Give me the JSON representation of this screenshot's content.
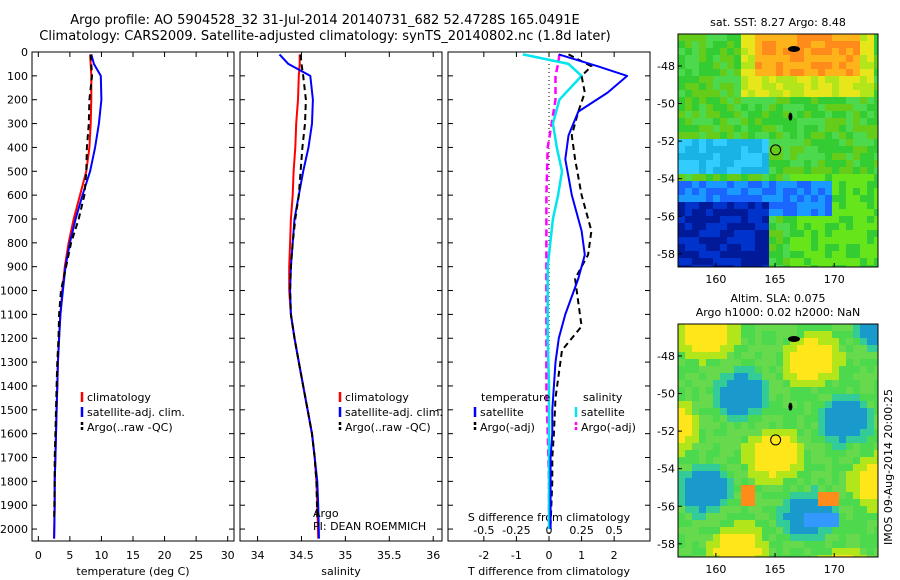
{
  "header": {
    "title_line1": "Argo profile: AO 5904528_32 31-Jul-2014 20140731_682 52.4728S 165.0491E",
    "title_line2": "Climatology: CARS2009. Satellite-adjusted climatology: synTS_20140802.nc (1.8d later)"
  },
  "colors": {
    "climatology": "#ff0000",
    "satellite": "#0000ff",
    "argo": "#000000",
    "satellite_salinity": "#00e5ee",
    "argo_salinity_adj": "#ff00ff"
  },
  "chart_data": [
    {
      "type": "line",
      "panel": "temperature",
      "xlabel": "temperature (deg C)",
      "xlim": [
        -1,
        31
      ],
      "xticks": [
        "0",
        "5",
        "10",
        "15",
        "20",
        "25",
        "30"
      ],
      "ylim": [
        0,
        2050
      ],
      "yticks": [
        "0",
        "100",
        "200",
        "300",
        "400",
        "500",
        "600",
        "700",
        "800",
        "900",
        "1000",
        "1100",
        "1200",
        "1300",
        "1400",
        "1500",
        "1600",
        "1700",
        "1800",
        "1900",
        "2000"
      ],
      "legend": [
        "climatology",
        "satellite-adj. clim.",
        "Argo(..raw -QC)"
      ],
      "series": [
        {
          "name": "climatology",
          "x": [
            8.2,
            8.3,
            8.4,
            8.4,
            8.3,
            8.1,
            7.6,
            6.6,
            5.6,
            4.8,
            4.2,
            3.8,
            3.5,
            3.3,
            3.1,
            3.0,
            2.9,
            2.8,
            2.7,
            2.6,
            2.6,
            2.5
          ],
          "y": [
            10,
            50,
            100,
            200,
            300,
            400,
            500,
            600,
            700,
            800,
            900,
            1000,
            1100,
            1200,
            1300,
            1400,
            1500,
            1600,
            1700,
            1800,
            1900,
            2040
          ]
        },
        {
          "name": "satellite-adj. clim.",
          "x": [
            8.4,
            8.8,
            9.9,
            10.0,
            9.6,
            9.0,
            8.2,
            7.0,
            5.9,
            5.0,
            4.3,
            3.9,
            3.5,
            3.3,
            3.1,
            3.0,
            2.9,
            2.8,
            2.7,
            2.6,
            2.6,
            2.5
          ],
          "y": [
            10,
            50,
            100,
            200,
            300,
            400,
            500,
            600,
            700,
            800,
            900,
            1000,
            1100,
            1200,
            1300,
            1400,
            1500,
            1600,
            1700,
            1800,
            1900,
            2040
          ]
        },
        {
          "name": "Argo(..raw -QC)",
          "x": [
            8.3,
            8.4,
            8.5,
            8.1,
            8.0,
            7.7,
            7.6,
            7.3,
            6.4,
            5.2,
            4.4,
            3.6,
            3.3,
            3.2,
            3.0,
            2.9,
            2.8,
            2.7,
            2.6,
            2.6,
            2.5
          ],
          "y": [
            10,
            50,
            100,
            200,
            300,
            400,
            500,
            600,
            700,
            800,
            900,
            1000,
            1100,
            1200,
            1300,
            1400,
            1500,
            1600,
            1700,
            1800,
            1960
          ]
        }
      ]
    },
    {
      "type": "line",
      "panel": "salinity",
      "xlabel": "salinity",
      "xlim": [
        33.8,
        36.1
      ],
      "xticks": [
        "34",
        "34.5",
        "35",
        "35.5",
        "36"
      ],
      "ylim": [
        0,
        2050
      ],
      "legend": [
        "climatology",
        "satellite-adj. clim.",
        "Argo(..raw -QC)"
      ],
      "annotation": [
        "Argo",
        "PI: DEAN ROEMMICH"
      ],
      "series": [
        {
          "name": "climatology",
          "x": [
            34.48,
            34.48,
            34.47,
            34.46,
            34.44,
            34.43,
            34.41,
            34.4,
            34.38,
            34.37,
            34.36,
            34.36,
            34.38,
            34.42,
            34.47,
            34.52,
            34.57,
            34.62,
            34.65,
            34.67,
            34.68,
            34.69
          ],
          "y": [
            10,
            50,
            100,
            200,
            300,
            400,
            500,
            600,
            700,
            800,
            900,
            1000,
            1100,
            1200,
            1300,
            1400,
            1500,
            1600,
            1700,
            1800,
            1900,
            2040
          ]
        },
        {
          "name": "satellite-adj. clim.",
          "x": [
            34.25,
            34.35,
            34.6,
            34.63,
            34.62,
            34.58,
            34.52,
            34.47,
            34.42,
            34.4,
            34.38,
            34.37,
            34.38,
            34.42,
            34.47,
            34.52,
            34.57,
            34.62,
            34.65,
            34.68,
            34.69,
            34.7
          ],
          "y": [
            10,
            50,
            100,
            200,
            300,
            400,
            500,
            600,
            700,
            800,
            900,
            1000,
            1100,
            1200,
            1300,
            1400,
            1500,
            1600,
            1700,
            1800,
            1900,
            2040
          ]
        },
        {
          "name": "Argo(..raw -QC)",
          "x": [
            34.49,
            34.5,
            34.52,
            34.55,
            34.54,
            34.51,
            34.49,
            34.47,
            34.43,
            34.4,
            34.38,
            34.37,
            34.38,
            34.42,
            34.47,
            34.52,
            34.57,
            34.62,
            34.65,
            34.67,
            34.68
          ],
          "y": [
            10,
            50,
            100,
            200,
            300,
            400,
            500,
            600,
            700,
            800,
            900,
            1000,
            1100,
            1200,
            1300,
            1400,
            1500,
            1600,
            1700,
            1800,
            1960
          ]
        }
      ]
    },
    {
      "type": "line",
      "panel": "difference",
      "xlabel": "T difference from climatology",
      "x2label": "S difference from climatology",
      "xlim": [
        -3.1,
        3.1
      ],
      "xticks": [
        "-2",
        "-1",
        "0",
        "1",
        "2"
      ],
      "x2lim": [
        -0.775,
        0.775
      ],
      "x2ticks": [
        "-0.5",
        "-0.25",
        "0",
        "0.25",
        "0.5"
      ],
      "ylim": [
        0,
        2050
      ],
      "legend": {
        "temperature_heading": "temperature",
        "salinity_heading": "salinity",
        "items": [
          "satellite",
          "Argo(-adj)",
          "satellite",
          "Argo(-adj)"
        ]
      },
      "series": [
        {
          "name": "satellite",
          "x": [
            0.3,
            1.5,
            2.4,
            1.8,
            0.9,
            0.6,
            0.5,
            0.7,
            1.0,
            1.1,
            0.9,
            0.5,
            0.3,
            0.2,
            0.15,
            0.1,
            0.1,
            0.05,
            0.05,
            0.05
          ],
          "y": [
            10,
            60,
            100,
            170,
            250,
            350,
            450,
            600,
            750,
            850,
            950,
            1100,
            1200,
            1300,
            1400,
            1500,
            1600,
            1700,
            1800,
            2000
          ]
        },
        {
          "name": "Argo(-adj)",
          "x": [
            0.6,
            1.3,
            1.0,
            1.1,
            0.9,
            0.7,
            0.8,
            1.0,
            1.3,
            1.2,
            0.8,
            0.9,
            1.0,
            0.4,
            0.3,
            0.2,
            0.15,
            0.1,
            0.1,
            0.05
          ],
          "y": [
            10,
            60,
            100,
            170,
            250,
            350,
            450,
            600,
            750,
            850,
            950,
            1050,
            1150,
            1250,
            1350,
            1450,
            1600,
            1700,
            1800,
            1980
          ]
        },
        {
          "name": "satellite",
          "x": [
            -0.2,
            0.15,
            0.25,
            0.08,
            0.03,
            0.06,
            0.1,
            0.07,
            0.03,
            0.01,
            -0.01,
            -0.01,
            -0.01,
            0.0,
            0.0,
            0.0,
            0.0
          ],
          "y": [
            10,
            50,
            100,
            200,
            300,
            400,
            500,
            600,
            700,
            800,
            900,
            1000,
            1200,
            1400,
            1600,
            1800,
            2000
          ]
        },
        {
          "name": "Argo(-adj)",
          "x": [
            0.08,
            0.07,
            0.05,
            0.05,
            0.02,
            -0.01,
            -0.02,
            -0.02,
            -0.02,
            -0.02,
            -0.02,
            -0.01,
            0.0,
            0.0
          ],
          "y": [
            10,
            50,
            100,
            200,
            300,
            400,
            600,
            800,
            1000,
            1200,
            1400,
            1600,
            1800,
            1980
          ]
        }
      ]
    },
    {
      "type": "heatmap",
      "panel": "sst-map",
      "title": "sat. SST: 8.27 Argo: 8.48",
      "xticks": [
        "160",
        "165",
        "170"
      ],
      "yticks": [
        "-48",
        "-50",
        "-52",
        "-54",
        "-56",
        "-58"
      ],
      "xlim": [
        156.8,
        173.7
      ],
      "ylim": [
        -58.7,
        -46.3
      ],
      "marker": {
        "lon": 165.05,
        "lat": -52.47
      }
    },
    {
      "type": "heatmap",
      "panel": "sla-map",
      "title": "Altim. SLA: 0.075",
      "subtitle": "Argo h1000: 0.02 h2000: NaN",
      "xticks": [
        "160",
        "165",
        "170"
      ],
      "yticks": [
        "-48",
        "-50",
        "-52",
        "-54",
        "-56",
        "-58"
      ],
      "xlim": [
        156.8,
        173.7
      ],
      "ylim": [
        -58.7,
        -46.3
      ],
      "marker": {
        "lon": 165.05,
        "lat": -52.47
      }
    }
  ],
  "footer": {
    "credit": "IMOS 09-Aug-2014 20:00:25"
  }
}
